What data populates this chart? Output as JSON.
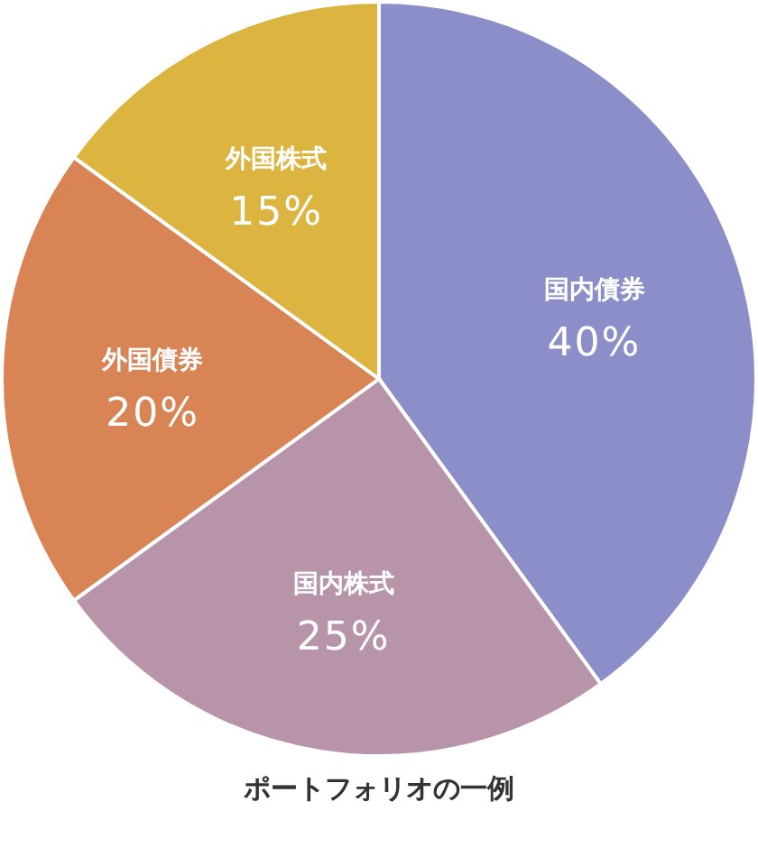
{
  "chart_data": {
    "type": "pie",
    "title": "ポートフォリオの一例",
    "categories": [
      "国内債券",
      "国内株式",
      "外国債券",
      "外国株式"
    ],
    "values": [
      40,
      25,
      20,
      15
    ],
    "value_labels": [
      "40%",
      "25%",
      "20%",
      "15%"
    ],
    "colors": [
      "#8c8ec9",
      "#b794a9",
      "#d88455",
      "#dcb440"
    ]
  }
}
